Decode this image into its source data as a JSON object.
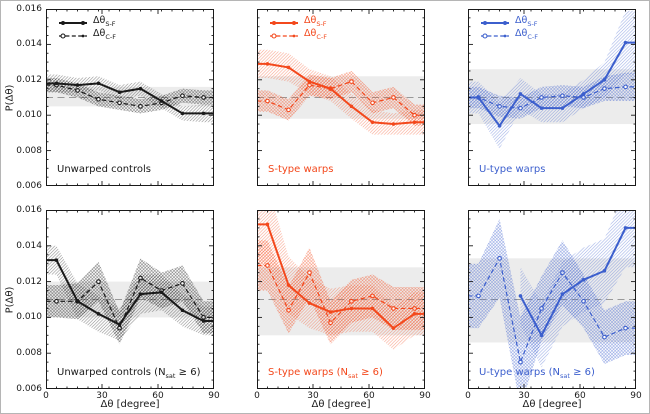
{
  "figure": {
    "background": "#ffffff",
    "border_color": "#b5b5b5"
  },
  "colors": {
    "black": "#1a1a1a",
    "orange": "#f3481c",
    "blue": "#3c5fcd",
    "band": "#ececec",
    "centerline": "#999999",
    "spine": "#1a1a1a"
  },
  "axes": {
    "ylabel": "P(Δθ)",
    "xlabel": "Δθ [degree]",
    "ylim": [
      0.006,
      0.016
    ],
    "xlim": [
      0,
      90
    ],
    "y_major_ticks": [
      0.006,
      0.008,
      0.01,
      0.012,
      0.014,
      0.016
    ],
    "y_tick_labels": [
      "0.006",
      "0.008",
      "0.010",
      "0.012",
      "0.014",
      "0.016"
    ],
    "y_minor_step": 0.0005,
    "x_major_ticks": [
      0,
      30,
      60,
      90
    ],
    "x_tick_labels": [
      "0",
      "30",
      "60",
      "90"
    ],
    "x_minor_step": 5.625,
    "grid": false
  },
  "legend": {
    "position": "upper-left",
    "entries": [
      {
        "main": "Δθ",
        "sub": "S-F",
        "style": "solid"
      },
      {
        "main": "Δθ",
        "sub": "C-F",
        "style": "dashed"
      }
    ]
  },
  "nsat_suffix": {
    "pre": " (N",
    "sub": "sat",
    "post": " ≥ 6)"
  },
  "chart_data": [
    {
      "type": "line",
      "id": "unwarped-controls",
      "row": 0,
      "col": 0,
      "caption": "Unwarped controls",
      "nsat": false,
      "color_key": "black",
      "show_legend": true,
      "x": [
        5.6,
        16.9,
        28.1,
        39.4,
        50.6,
        61.9,
        73.1,
        84.4
      ],
      "band": [
        0.0105,
        0.0116
      ],
      "centerline": 0.011,
      "series": [
        {
          "name": "Δθ S-F",
          "style": "solid",
          "values": [
            0.0118,
            0.0117,
            0.0118,
            0.0113,
            0.0115,
            0.0108,
            0.0101,
            0.0101
          ],
          "err": [
            0.0005,
            0.0004,
            0.0004,
            0.0004,
            0.0004,
            0.0004,
            0.0004,
            0.0005
          ]
        },
        {
          "name": "Δθ C-F",
          "style": "dashed",
          "values": [
            0.0117,
            0.0114,
            0.0109,
            0.0107,
            0.0105,
            0.0107,
            0.0111,
            0.011
          ],
          "err": [
            0.0004,
            0.0004,
            0.0004,
            0.0004,
            0.0004,
            0.0004,
            0.0004,
            0.0004
          ]
        }
      ]
    },
    {
      "type": "line",
      "id": "s-type-warps",
      "row": 0,
      "col": 1,
      "caption": "S-type warps",
      "nsat": false,
      "color_key": "orange",
      "show_legend": true,
      "x": [
        5.6,
        16.9,
        28.1,
        39.4,
        50.6,
        61.9,
        73.1,
        84.4
      ],
      "band": [
        0.0098,
        0.0122
      ],
      "centerline": 0.011,
      "series": [
        {
          "name": "Δθ S-F",
          "style": "solid",
          "values": [
            0.0129,
            0.0127,
            0.0119,
            0.0115,
            0.0105,
            0.0096,
            0.0095,
            0.0096
          ],
          "err": [
            0.0008,
            0.0008,
            0.0007,
            0.0007,
            0.0007,
            0.0007,
            0.0006,
            0.0007
          ]
        },
        {
          "name": "Δθ C-F",
          "style": "dashed",
          "values": [
            0.0108,
            0.0103,
            0.0117,
            0.0115,
            0.0119,
            0.0107,
            0.011,
            0.01
          ],
          "err": [
            0.0006,
            0.0006,
            0.0006,
            0.0006,
            0.0006,
            0.0006,
            0.0006,
            0.0006
          ]
        }
      ]
    },
    {
      "type": "line",
      "id": "u-type-warps",
      "row": 0,
      "col": 2,
      "caption": "U-type warps",
      "nsat": false,
      "color_key": "blue",
      "show_legend": true,
      "x": [
        5.6,
        16.9,
        28.1,
        39.4,
        50.6,
        61.9,
        73.1,
        84.4
      ],
      "band": [
        0.0095,
        0.0126
      ],
      "centerline": 0.011,
      "series": [
        {
          "name": "Δθ S-F",
          "style": "solid",
          "values": [
            0.011,
            0.0094,
            0.0112,
            0.0104,
            0.0104,
            0.0112,
            0.012,
            0.0141
          ],
          "err": [
            0.0009,
            0.0013,
            0.0009,
            0.0008,
            0.0008,
            0.0008,
            0.001,
            0.0018
          ]
        },
        {
          "name": "Δθ C-F",
          "style": "dashed",
          "values": [
            0.011,
            0.0105,
            0.0104,
            0.011,
            0.0111,
            0.011,
            0.0115,
            0.0116
          ],
          "err": [
            0.0006,
            0.0006,
            0.0006,
            0.0006,
            0.0006,
            0.0006,
            0.0007,
            0.0008
          ]
        }
      ]
    },
    {
      "type": "line",
      "id": "unwarped-controls-nsat6",
      "row": 1,
      "col": 0,
      "caption": "Unwarped controls",
      "nsat": true,
      "color_key": "black",
      "show_legend": false,
      "x": [
        5.6,
        16.9,
        28.1,
        39.4,
        50.6,
        61.9,
        73.1,
        84.4
      ],
      "band": [
        0.01,
        0.012
      ],
      "centerline": 0.011,
      "series": [
        {
          "name": "Δθ S-F",
          "style": "solid",
          "values": [
            0.0132,
            0.0109,
            0.0102,
            0.0096,
            0.0113,
            0.0114,
            0.0104,
            0.0098
          ],
          "err": [
            0.0008,
            0.001,
            0.001,
            0.0009,
            0.0011,
            0.001,
            0.0009,
            0.0008
          ]
        },
        {
          "name": "Δθ C-F",
          "style": "dashed",
          "values": [
            0.0109,
            0.0109,
            0.012,
            0.0094,
            0.0122,
            0.0115,
            0.0119,
            0.01
          ],
          "err": [
            0.0009,
            0.001,
            0.0011,
            0.0009,
            0.0011,
            0.001,
            0.001,
            0.0009
          ]
        }
      ]
    },
    {
      "type": "line",
      "id": "s-type-warps-nsat6",
      "row": 1,
      "col": 1,
      "caption": "S-type warps",
      "nsat": true,
      "color_key": "orange",
      "show_legend": false,
      "x": [
        5.6,
        16.9,
        28.1,
        39.4,
        50.6,
        61.9,
        73.1,
        84.4
      ],
      "band": [
        0.009,
        0.0128
      ],
      "centerline": 0.011,
      "series": [
        {
          "name": "Δθ S-F",
          "style": "solid",
          "values": [
            0.0152,
            0.0118,
            0.0108,
            0.0103,
            0.0105,
            0.0105,
            0.0094,
            0.0102
          ],
          "err": [
            0.0022,
            0.0016,
            0.0014,
            0.0013,
            0.0013,
            0.0013,
            0.0012,
            0.0012
          ]
        },
        {
          "name": "Δθ C-F",
          "style": "dashed",
          "values": [
            0.0129,
            0.0104,
            0.0125,
            0.0097,
            0.0109,
            0.0112,
            0.0105,
            0.0105
          ],
          "err": [
            0.0014,
            0.0013,
            0.0014,
            0.0012,
            0.0012,
            0.0012,
            0.0012,
            0.0012
          ]
        }
      ]
    },
    {
      "type": "line",
      "id": "u-type-warps-nsat6",
      "row": 1,
      "col": 2,
      "caption": "U-type warps",
      "nsat": true,
      "color_key": "blue",
      "show_legend": false,
      "x": [
        5.6,
        16.9,
        28.1,
        39.4,
        50.6,
        61.9,
        73.1,
        84.4
      ],
      "band": [
        0.0086,
        0.0133
      ],
      "centerline": 0.011,
      "series": [
        {
          "name": "Δθ S-F",
          "style": "solid",
          "values": [
            null,
            null,
            0.0112,
            0.009,
            0.0113,
            0.0121,
            0.0126,
            0.015
          ],
          "err": [
            null,
            null,
            0.0016,
            0.0018,
            0.0018,
            0.0018,
            0.0018,
            0.0022
          ]
        },
        {
          "name": "Δθ C-F",
          "style": "dashed",
          "values": [
            0.0112,
            0.0133,
            0.0075,
            0.0105,
            0.0125,
            0.0109,
            0.0089,
            0.0094
          ],
          "err": [
            0.0018,
            0.0022,
            0.0025,
            0.0018,
            0.0018,
            0.0015,
            0.0015,
            0.0015
          ]
        }
      ]
    }
  ]
}
